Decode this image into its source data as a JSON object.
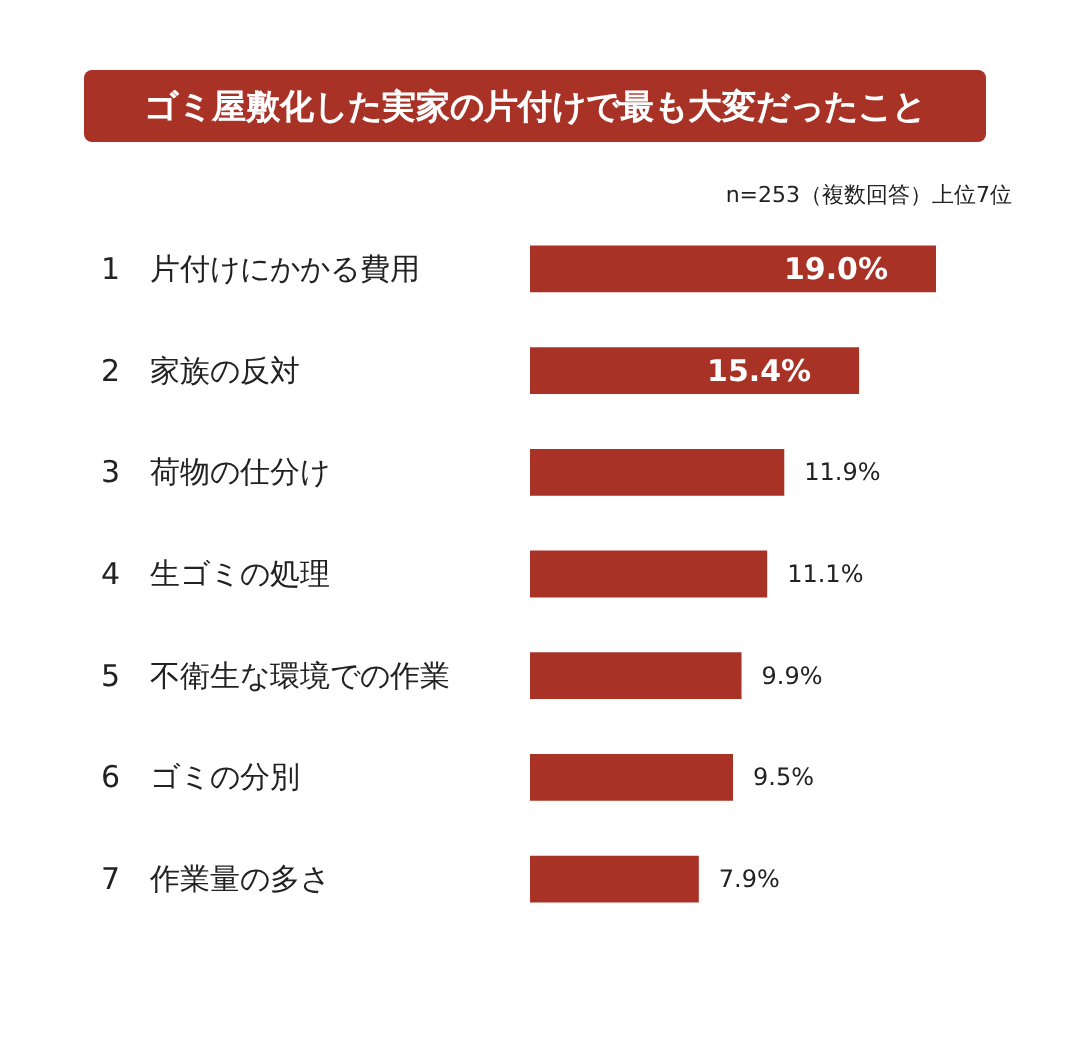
{
  "chart_data": {
    "type": "bar",
    "orientation": "horizontal",
    "title": "ゴミ屋敷化した実家の片付けで最も大変だったこと",
    "subtitle": "n=253（複数回答）上位7位",
    "categories": [
      "1　片付けにかかる費用",
      "2　家族の反対",
      "3　荷物の仕分け",
      "4　生ゴミの処理",
      "5　不衛生な環境での作業",
      "6　ゴミの分別",
      "7　作業量の多さ"
    ],
    "values": [
      19.0,
      15.4,
      11.9,
      11.1,
      9.9,
      9.5,
      7.9
    ],
    "value_labels": [
      "19.0%",
      "15.4%",
      "11.9%",
      "11.1%",
      "9.9%",
      "9.5%",
      "7.9%"
    ],
    "color": "#a93226"
  }
}
